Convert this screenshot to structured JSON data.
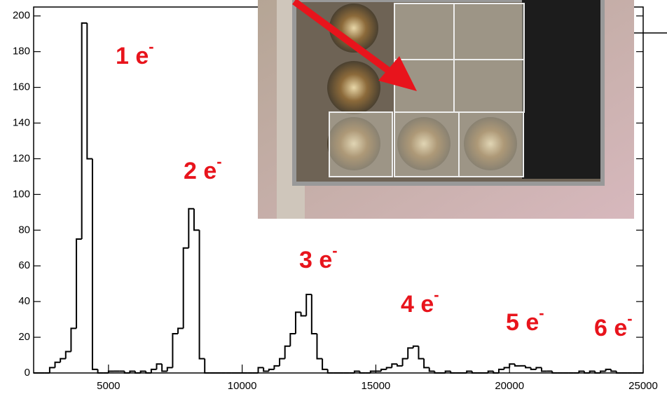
{
  "chart_data": {
    "type": "histogram",
    "bins": [
      2200,
      2400,
      2600,
      2800,
      3000,
      3200,
      3400,
      3600,
      3800,
      4000,
      4200,
      4400,
      4600,
      4800,
      5000,
      5200,
      5400,
      5600,
      5800,
      6000,
      6200,
      6400,
      6600,
      6800,
      7000,
      7200,
      7400,
      7600,
      7800,
      8000,
      8200,
      8400,
      8600,
      8800,
      9000,
      9200,
      9400,
      9600,
      9800,
      10000,
      10200,
      10400,
      10600,
      10800,
      11000,
      11200,
      11400,
      11600,
      11800,
      12000,
      12200,
      12400,
      12600,
      12800,
      13000,
      13200,
      13400,
      13600,
      13800,
      14000,
      14200,
      14400,
      14600,
      14800,
      15000,
      15200,
      15400,
      15600,
      15800,
      16000,
      16200,
      16400,
      16600,
      16800,
      17000,
      17200,
      17400,
      17600,
      17800,
      18000,
      18200,
      18400,
      18600,
      18800,
      19000,
      19200,
      19400,
      19600,
      19800,
      20000,
      20200,
      20400,
      20600,
      20800,
      21000,
      21200,
      21400,
      21600,
      21800,
      22000,
      22200,
      22400,
      22600,
      22800,
      23000,
      23200,
      23400,
      23600,
      23800,
      24000,
      24200,
      24400,
      24600,
      24800,
      25000
    ],
    "values": [
      0,
      0,
      0,
      3,
      6,
      8,
      12,
      25,
      75,
      196,
      120,
      2,
      0,
      0,
      1,
      1,
      1,
      0,
      1,
      0,
      1,
      0,
      2,
      5,
      1,
      3,
      22,
      25,
      70,
      92,
      80,
      8,
      0,
      0,
      0,
      0,
      0,
      0,
      0,
      0,
      0,
      0,
      3,
      1,
      2,
      4,
      8,
      15,
      22,
      34,
      32,
      44,
      22,
      8,
      2,
      0,
      0,
      0,
      0,
      0,
      1,
      0,
      0,
      1,
      1,
      2,
      3,
      5,
      4,
      8,
      14,
      15,
      8,
      3,
      1,
      0,
      0,
      1,
      0,
      0,
      0,
      1,
      0,
      0,
      0,
      1,
      0,
      2,
      3,
      5,
      4,
      4,
      3,
      2,
      3,
      1,
      1,
      0,
      0,
      0,
      0,
      0,
      1,
      0,
      1,
      0,
      1,
      2,
      1,
      0,
      0,
      0,
      0,
      0
    ],
    "color": "#000000",
    "xlim": [
      2200,
      25000
    ],
    "ylim": [
      0,
      205
    ],
    "xticks": [
      5000,
      10000,
      15000,
      20000,
      25000
    ],
    "yticks": [
      0,
      20,
      40,
      60,
      80,
      100,
      120,
      140,
      160,
      180,
      200
    ],
    "annotations": [
      {
        "text": "1 e",
        "sup": "-"
      },
      {
        "text": "2 e",
        "sup": "-"
      },
      {
        "text": "3 e",
        "sup": "-"
      },
      {
        "text": "4 e",
        "sup": "-"
      },
      {
        "text": "5 e",
        "sup": "-"
      },
      {
        "text": "6 e",
        "sup": "-"
      }
    ]
  }
}
